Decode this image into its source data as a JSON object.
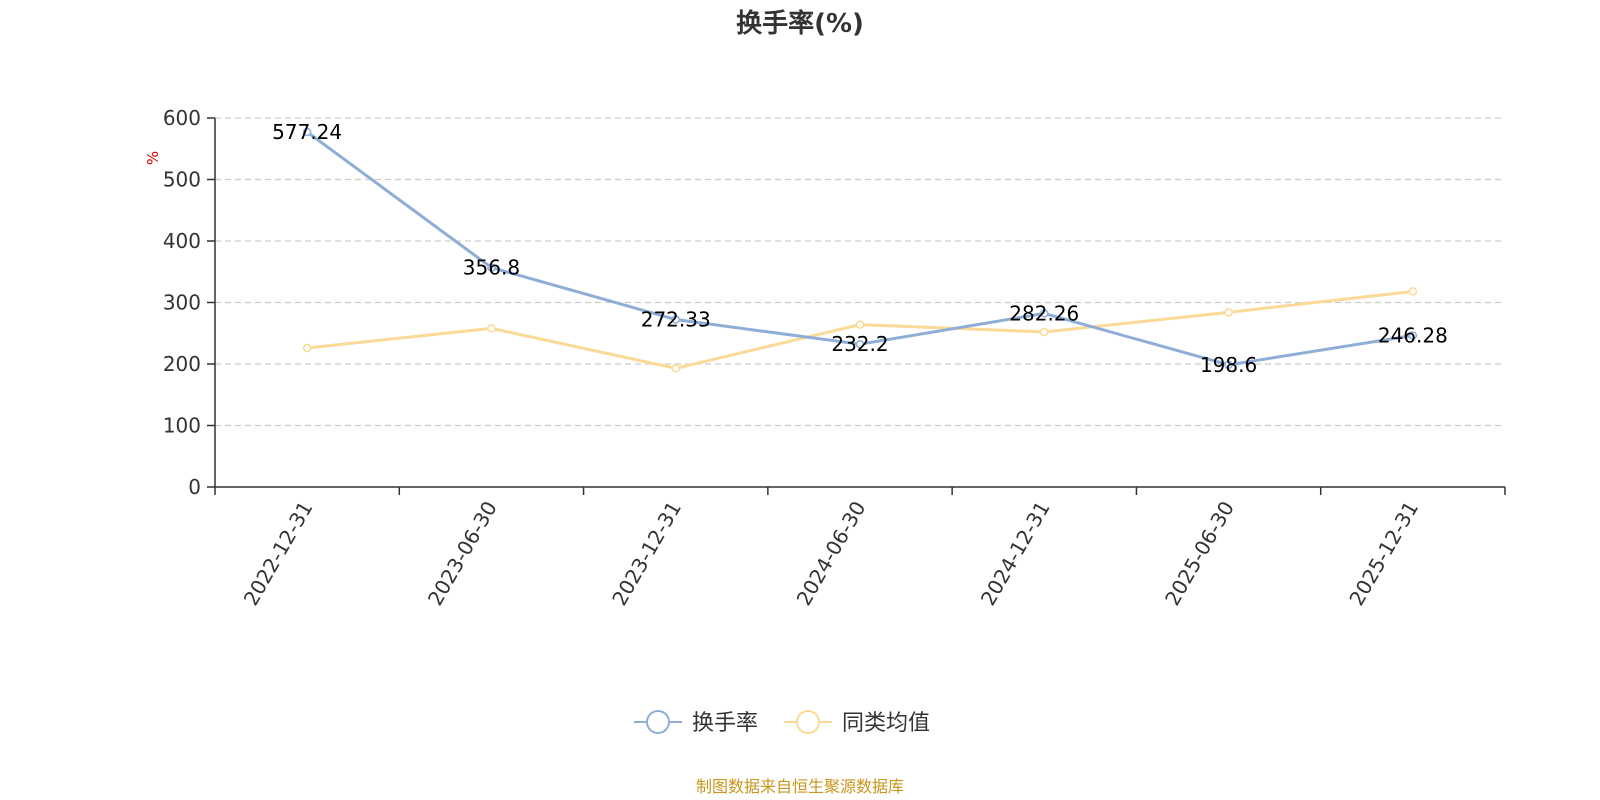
{
  "chart_data": {
    "type": "line",
    "title": "换手率(%)",
    "ylabel": "%",
    "xlabel": "",
    "ylim": [
      0,
      600
    ],
    "yticks": [
      0,
      100,
      200,
      300,
      400,
      500,
      600
    ],
    "grid": true,
    "legend_position": "bottom-center",
    "categories": [
      "2022-12-31",
      "2023-06-30",
      "2023-12-31",
      "2024-06-30",
      "2024-12-31",
      "2025-06-30",
      "2025-12-31"
    ],
    "series": [
      {
        "name": "换手率",
        "values": [
          577.24,
          356.8,
          272.33,
          232.2,
          282.26,
          198.6,
          246.28
        ],
        "labels": [
          "577.24",
          "356.8",
          "272.33",
          "232.2",
          "282.26",
          "198.6",
          "246.28"
        ],
        "color": "#8eaed8"
      },
      {
        "name": "同类均值",
        "values": [
          226,
          258,
          193,
          264,
          252,
          284,
          318
        ],
        "color": "#fbd996"
      }
    ]
  },
  "footer": {
    "source": "制图数据来自恒生聚源数据库"
  },
  "colors": {
    "axis": "#333333",
    "grid": "#cccccc",
    "unit": "#e00000",
    "source": "#c8961e"
  }
}
